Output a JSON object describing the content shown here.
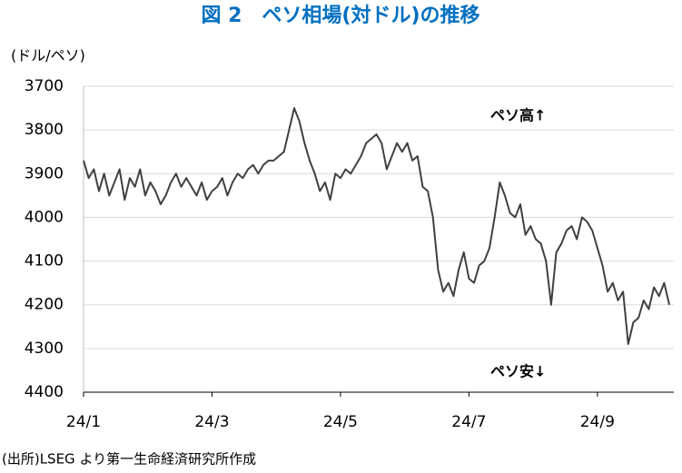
{
  "chart_data": {
    "type": "line",
    "title": "図 2　ペソ相場(対ドル)の推移",
    "y_label": "(ドル/ペソ)",
    "annotations": [
      "ペソ高↑",
      "ペソ安↓"
    ],
    "source": "(出所)LSEG より第一生命経済研究所作成",
    "x": [
      0.0,
      0.08,
      0.16,
      0.24,
      0.32,
      0.4,
      0.48,
      0.56,
      0.64,
      0.72,
      0.8,
      0.88,
      0.96,
      1.04,
      1.12,
      1.2,
      1.28,
      1.36,
      1.44,
      1.52,
      1.6,
      1.68,
      1.76,
      1.84,
      1.92,
      2.0,
      2.08,
      2.16,
      2.24,
      2.32,
      2.4,
      2.48,
      2.56,
      2.64,
      2.72,
      2.8,
      2.88,
      2.96,
      3.04,
      3.12,
      3.2,
      3.28,
      3.36,
      3.44,
      3.52,
      3.6,
      3.68,
      3.76,
      3.84,
      3.92,
      4.0,
      4.08,
      4.16,
      4.24,
      4.32,
      4.4,
      4.48,
      4.56,
      4.64,
      4.72,
      4.8,
      4.88,
      4.96,
      5.04,
      5.12,
      5.2,
      5.28,
      5.36,
      5.44,
      5.52,
      5.6,
      5.68,
      5.76,
      5.84,
      5.92,
      6.0,
      6.08,
      6.16,
      6.24,
      6.32,
      6.4,
      6.48,
      6.56,
      6.64,
      6.72,
      6.8,
      6.88,
      6.96,
      7.04,
      7.12,
      7.2,
      7.28,
      7.36,
      7.44,
      7.52,
      7.6,
      7.68,
      7.76,
      7.84,
      7.92,
      8.0,
      8.08,
      8.16,
      8.24,
      8.32,
      8.4,
      8.48,
      8.56,
      8.64,
      8.72,
      8.8,
      8.88,
      8.96,
      9.04,
      9.12
    ],
    "values": [
      3870,
      3910,
      3890,
      3940,
      3900,
      3950,
      3920,
      3890,
      3960,
      3910,
      3930,
      3890,
      3950,
      3920,
      3940,
      3970,
      3950,
      3920,
      3900,
      3930,
      3910,
      3930,
      3950,
      3920,
      3960,
      3940,
      3930,
      3910,
      3950,
      3920,
      3900,
      3910,
      3890,
      3880,
      3900,
      3880,
      3870,
      3870,
      3860,
      3850,
      3800,
      3750,
      3780,
      3830,
      3870,
      3900,
      3940,
      3920,
      3960,
      3900,
      3910,
      3890,
      3900,
      3880,
      3860,
      3830,
      3820,
      3810,
      3830,
      3890,
      3860,
      3830,
      3850,
      3830,
      3870,
      3860,
      3930,
      3940,
      4000,
      4120,
      4170,
      4150,
      4180,
      4120,
      4080,
      4140,
      4150,
      4110,
      4100,
      4070,
      4000,
      3920,
      3950,
      3990,
      4000,
      3970,
      4040,
      4020,
      4050,
      4060,
      4100,
      4200,
      4080,
      4060,
      4030,
      4020,
      4050,
      4000,
      4010,
      4030,
      4070,
      4110,
      4170,
      4150,
      4190,
      4170,
      4290,
      4240,
      4230,
      4190,
      4210,
      4160,
      4180,
      4150,
      4200
    ],
    "color": "#404040",
    "xlim": [
      0,
      9.19
    ],
    "xticks": [
      {
        "value": 0,
        "label": "24/1"
      },
      {
        "value": 2,
        "label": "24/3"
      },
      {
        "value": 4,
        "label": "24/5"
      },
      {
        "value": 6,
        "label": "24/7"
      },
      {
        "value": 8,
        "label": "24/9"
      }
    ],
    "ylim": [
      3700,
      4400
    ],
    "yticks": [
      3700,
      3800,
      3900,
      4000,
      4100,
      4200,
      4300,
      4400
    ],
    "y_reversed": true,
    "grid": true
  }
}
